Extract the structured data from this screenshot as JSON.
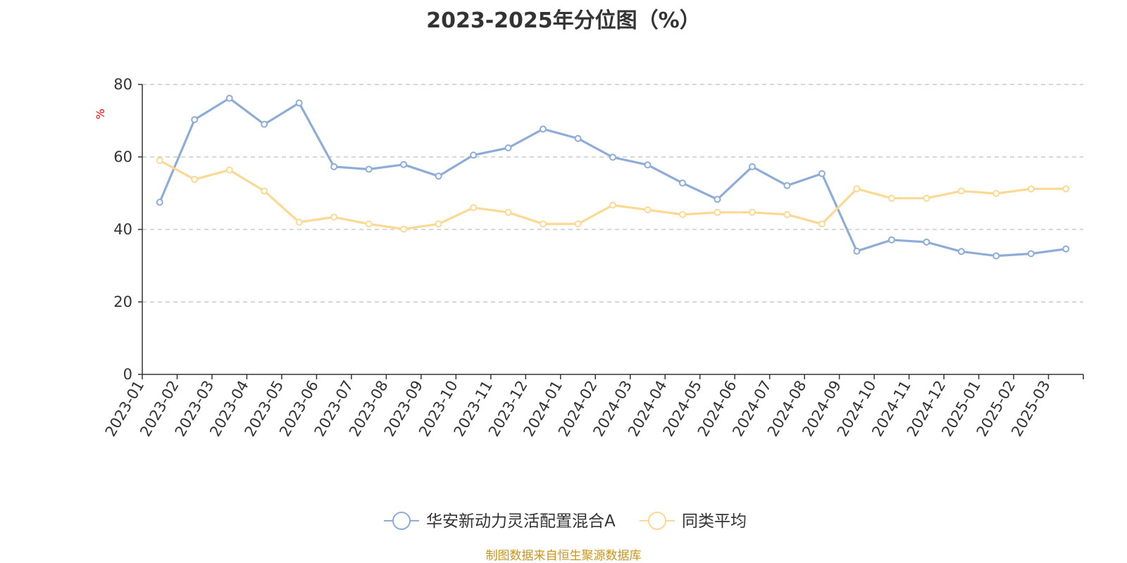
{
  "source_note": "制图数据来自恒生聚源数据库",
  "chart_data": {
    "type": "line",
    "title": "2023-2025年分位图（%）",
    "ylabel": "%",
    "ylabel_color": "#ff0000",
    "ylim": [
      0,
      80
    ],
    "yticks": [
      0,
      20,
      40,
      60,
      80
    ],
    "grid": true,
    "legend_position": "bottom-center",
    "categories": [
      "2023-01",
      "2023-02",
      "2023-03",
      "2023-04",
      "2023-05",
      "2023-06",
      "2023-07",
      "2023-08",
      "2023-09",
      "2023-10",
      "2023-11",
      "2023-12",
      "2024-01",
      "2024-02",
      "2024-03",
      "2024-04",
      "2024-05",
      "2024-06",
      "2024-07",
      "2024-08",
      "2024-09",
      "2024-10",
      "2024-11",
      "2024-12",
      "2025-01",
      "2025-02",
      "2025-03"
    ],
    "series": [
      {
        "name": "华安新动力灵活配置混合A",
        "color": "#8eacd8",
        "values": [
          47.5,
          70.3,
          76.2,
          69.0,
          74.9,
          57.3,
          56.6,
          57.9,
          54.7,
          60.5,
          62.5,
          67.7,
          65.1,
          59.9,
          57.8,
          52.8,
          48.3,
          57.3,
          52.1,
          55.4,
          34.0,
          37.1,
          36.5,
          33.9,
          32.7,
          33.3,
          34.6
        ]
      },
      {
        "name": "同类平均",
        "color": "#fcd992",
        "values": [
          59.0,
          53.8,
          56.4,
          50.6,
          42.0,
          43.4,
          41.5,
          40.1,
          41.5,
          46.0,
          44.7,
          41.5,
          41.5,
          46.7,
          45.4,
          44.1,
          44.7,
          44.7,
          44.1,
          41.5,
          51.2,
          48.6,
          48.6,
          50.6,
          49.9,
          51.2,
          51.2
        ]
      }
    ]
  }
}
